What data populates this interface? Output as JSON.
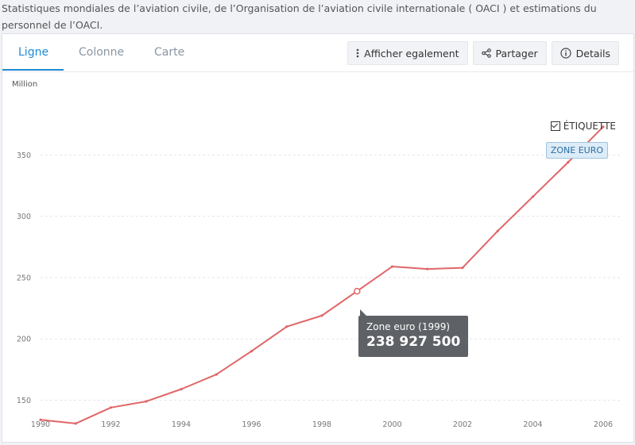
{
  "header": {
    "source_note": "Statistiques mondiales de l’aviation civile, de l’Organisation de l’aviation civile internationale ( OACI ) et estimations du personnel de l’OACI."
  },
  "tabs": [
    {
      "label": "Ligne",
      "active": true
    },
    {
      "label": "Colonne",
      "active": false
    },
    {
      "label": "Carte",
      "active": false
    }
  ],
  "actions": [
    {
      "label": "Afficher egalement",
      "icon": "vertical-dots-icon"
    },
    {
      "label": "Partager",
      "icon": "share-icon"
    },
    {
      "label": "Details",
      "icon": "info-icon"
    }
  ],
  "label_toggle": {
    "text": "ÉTIQUETTE",
    "checked": true
  },
  "series_label": "ZONE EURO",
  "tooltip": {
    "label": "Zone euro (1999)",
    "value": "238 927 500"
  },
  "colors": {
    "accent": "#1d8ad4",
    "series": "#e06668",
    "grid": "#e3e6ea"
  },
  "chart_data": {
    "type": "line",
    "ylabel": "Million",
    "ylim": [
      118,
      380
    ],
    "xlim": [
      1990,
      2006
    ],
    "y_ticks": [
      150,
      200,
      250,
      300,
      350
    ],
    "x_ticks": [
      1990,
      1992,
      1994,
      1996,
      1998,
      2000,
      2002,
      2004,
      2006
    ],
    "grid": true,
    "series": [
      {
        "name": "Zone euro",
        "x": [
          1990,
          1991,
          1992,
          1993,
          1994,
          1995,
          1996,
          1997,
          1998,
          1999,
          2000,
          2001,
          2002,
          2003,
          2004,
          2005,
          2006
        ],
        "values": [
          134,
          131,
          144,
          149,
          159,
          171,
          190,
          210,
          219,
          238.9,
          259,
          257,
          258,
          288,
          316,
          344,
          373
        ]
      }
    ],
    "highlight": {
      "x": 1999,
      "value": 238.9
    }
  }
}
